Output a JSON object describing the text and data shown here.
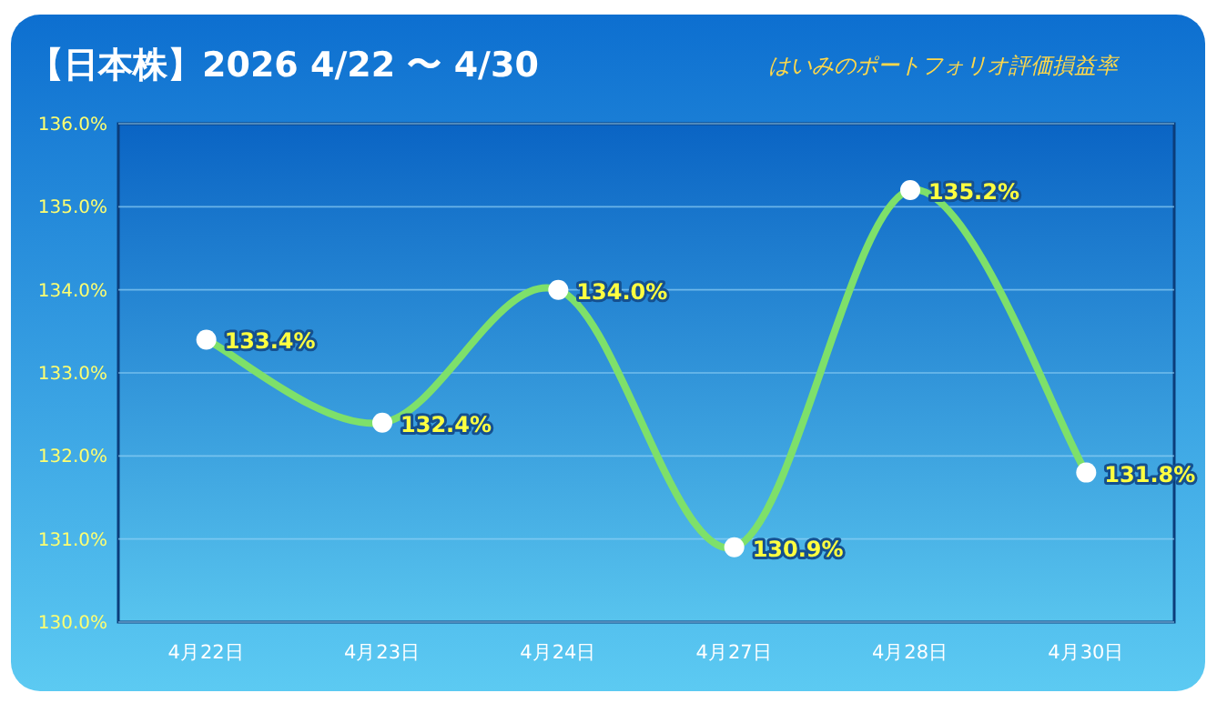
{
  "chart_data": {
    "type": "line",
    "title": "【日本株】2026 4/22 〜 4/30",
    "subtitle": "はいみのポートフォリオ評価損益率",
    "categories": [
      "4月22日",
      "4月23日",
      "4月24日",
      "4月27日",
      "4月28日",
      "4月30日"
    ],
    "series": [
      {
        "color": "#7ee06a",
        "values": [
          133.4,
          132.4,
          134.0,
          130.9,
          135.2,
          131.8
        ],
        "value_labels": [
          "133.4%",
          "132.4%",
          "134.0%",
          "130.9%",
          "135.2%",
          "131.8%"
        ]
      }
    ],
    "ylim": [
      130,
      136
    ],
    "yticks": [
      {
        "value": 130,
        "label": "130.0%"
      },
      {
        "value": 131,
        "label": "131.0%"
      },
      {
        "value": 132,
        "label": "132.0%"
      },
      {
        "value": 133,
        "label": "133.0%"
      },
      {
        "value": 134,
        "label": "134.0%"
      },
      {
        "value": 135,
        "label": "135.0%"
      },
      {
        "value": 136,
        "label": "136.0%"
      }
    ],
    "grid": "y",
    "marker": "circle"
  }
}
